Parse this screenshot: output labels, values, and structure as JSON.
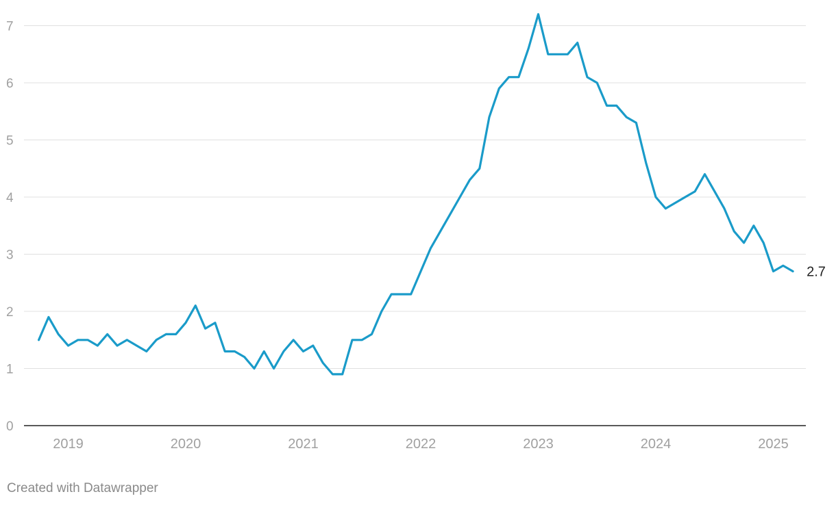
{
  "chart_data": {
    "type": "line",
    "title": "",
    "xlabel": "",
    "ylabel": "",
    "ylim": [
      0,
      7
    ],
    "yticks": [
      "0",
      "1",
      "2",
      "3",
      "4",
      "5",
      "6",
      "7"
    ],
    "xticks": [
      "2019",
      "2020",
      "2021",
      "2022",
      "2023",
      "2024",
      "2025"
    ],
    "grid": true,
    "series": [
      {
        "color": "#1a9bc9",
        "end_label": "2.7",
        "points": [
          [
            "2018-10",
            1.5
          ],
          [
            "2018-11",
            1.9
          ],
          [
            "2018-12",
            1.6
          ],
          [
            "2019-01",
            1.4
          ],
          [
            "2019-02",
            1.5
          ],
          [
            "2019-03",
            1.5
          ],
          [
            "2019-04",
            1.4
          ],
          [
            "2019-05",
            1.6
          ],
          [
            "2019-06",
            1.4
          ],
          [
            "2019-07",
            1.5
          ],
          [
            "2019-08",
            1.4
          ],
          [
            "2019-09",
            1.3
          ],
          [
            "2019-10",
            1.5
          ],
          [
            "2019-11",
            1.6
          ],
          [
            "2019-12",
            1.6
          ],
          [
            "2020-01",
            1.8
          ],
          [
            "2020-02",
            2.1
          ],
          [
            "2020-03",
            1.7
          ],
          [
            "2020-04",
            1.8
          ],
          [
            "2020-05",
            1.3
          ],
          [
            "2020-06",
            1.3
          ],
          [
            "2020-07",
            1.2
          ],
          [
            "2020-08",
            1.0
          ],
          [
            "2020-09",
            1.3
          ],
          [
            "2020-10",
            1.0
          ],
          [
            "2020-11",
            1.3
          ],
          [
            "2020-12",
            1.5
          ],
          [
            "2021-01",
            1.3
          ],
          [
            "2021-02",
            1.4
          ],
          [
            "2021-03",
            1.1
          ],
          [
            "2021-04",
            0.9
          ],
          [
            "2021-05",
            0.9
          ],
          [
            "2021-06",
            1.5
          ],
          [
            "2021-07",
            1.5
          ],
          [
            "2021-08",
            1.6
          ],
          [
            "2021-09",
            2.0
          ],
          [
            "2021-10",
            2.3
          ],
          [
            "2021-11",
            2.3
          ],
          [
            "2021-12",
            2.3
          ],
          [
            "2022-01",
            2.7
          ],
          [
            "2022-02",
            3.1
          ],
          [
            "2022-03",
            3.4
          ],
          [
            "2022-04",
            3.7
          ],
          [
            "2022-05",
            4.0
          ],
          [
            "2022-06",
            4.3
          ],
          [
            "2022-07",
            4.5
          ],
          [
            "2022-08",
            5.4
          ],
          [
            "2022-09",
            5.9
          ],
          [
            "2022-10",
            6.1
          ],
          [
            "2022-11",
            6.1
          ],
          [
            "2022-12",
            6.6
          ],
          [
            "2023-01",
            7.2
          ],
          [
            "2023-02",
            6.5
          ],
          [
            "2023-03",
            6.5
          ],
          [
            "2023-04",
            6.5
          ],
          [
            "2023-05",
            6.7
          ],
          [
            "2023-06",
            6.1
          ],
          [
            "2023-07",
            6.0
          ],
          [
            "2023-08",
            5.6
          ],
          [
            "2023-09",
            5.6
          ],
          [
            "2023-10",
            5.4
          ],
          [
            "2023-11",
            5.3
          ],
          [
            "2023-12",
            4.6
          ],
          [
            "2024-01",
            4.0
          ],
          [
            "2024-02",
            3.8
          ],
          [
            "2024-03",
            3.9
          ],
          [
            "2024-04",
            4.0
          ],
          [
            "2024-05",
            4.1
          ],
          [
            "2024-06",
            4.4
          ],
          [
            "2024-07",
            4.1
          ],
          [
            "2024-08",
            3.8
          ],
          [
            "2024-09",
            3.4
          ],
          [
            "2024-10",
            3.2
          ],
          [
            "2024-11",
            3.5
          ],
          [
            "2024-12",
            3.2
          ],
          [
            "2025-01",
            2.7
          ],
          [
            "2025-02",
            2.8
          ],
          [
            "2025-03",
            2.7
          ]
        ]
      }
    ]
  },
  "credit": "Created with Datawrapper",
  "colors": {
    "line": "#1a9bc9",
    "grid": "#e0e0e0",
    "axis": "#222222",
    "tick_label": "#a0a0a0",
    "end_label": "#222222"
  }
}
